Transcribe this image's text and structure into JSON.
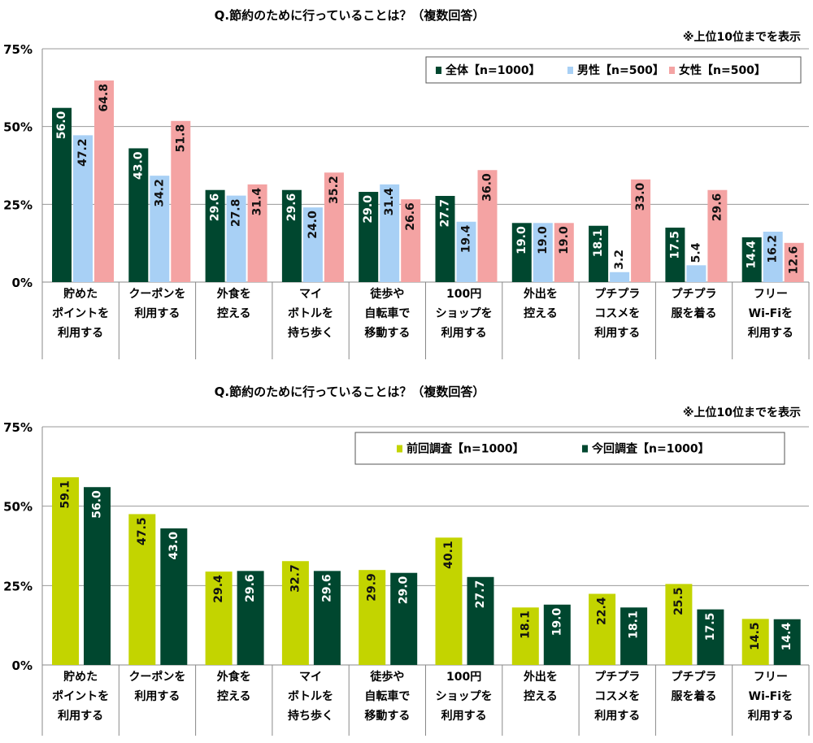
{
  "colors": {
    "total": "#00472f",
    "male": "#a8d0f5",
    "female": "#f4a3a3",
    "previous": "#c3d400",
    "current": "#00472f"
  },
  "chart_data": [
    {
      "type": "bar",
      "title": "Q.節約のために行っていることは？（複数回答）",
      "note": "※上位10位までを表示",
      "ylim": [
        0,
        75
      ],
      "yticks": [
        "0%",
        "25%",
        "50%",
        "75%"
      ],
      "grid": true,
      "legend": "top-right",
      "categories": [
        [
          "貯めた",
          "ポイントを",
          "利用する"
        ],
        [
          "クーポンを",
          "利用する"
        ],
        [
          "外食を",
          "控える"
        ],
        [
          "マイ",
          "ボトルを",
          "持ち歩く"
        ],
        [
          "徒歩や",
          "自転車で",
          "移動する"
        ],
        [
          "100円",
          "ショップを",
          "利用する"
        ],
        [
          "外出を",
          "控える"
        ],
        [
          "プチプラ",
          "コスメを",
          "利用する"
        ],
        [
          "プチプラ",
          "服を着る"
        ],
        [
          "フリー",
          "Wi-Fiを",
          "利用する"
        ]
      ],
      "series": [
        {
          "name": "全体【n=1000】",
          "color_key": "total",
          "values": [
            56.0,
            43.0,
            29.6,
            29.6,
            29.0,
            27.7,
            19.0,
            18.1,
            17.5,
            14.4
          ]
        },
        {
          "name": "男性【n=500】",
          "color_key": "male",
          "values": [
            47.2,
            34.2,
            27.8,
            24.0,
            31.4,
            19.4,
            19.0,
            3.2,
            5.4,
            16.2
          ]
        },
        {
          "name": "女性【n=500】",
          "color_key": "female",
          "values": [
            64.8,
            51.8,
            31.4,
            35.2,
            26.6,
            36.0,
            19.0,
            33.0,
            29.6,
            12.6
          ]
        }
      ]
    },
    {
      "type": "bar",
      "title": "Q.節約のために行っていることは？（複数回答）",
      "note": "※上位10位までを表示",
      "ylim": [
        0,
        75
      ],
      "yticks": [
        "0%",
        "25%",
        "50%",
        "75%"
      ],
      "grid": true,
      "legend": "top-right",
      "categories": [
        [
          "貯めた",
          "ポイントを",
          "利用する"
        ],
        [
          "クーポンを",
          "利用する"
        ],
        [
          "外食を",
          "控える"
        ],
        [
          "マイ",
          "ボトルを",
          "持ち歩く"
        ],
        [
          "徒歩や",
          "自転車で",
          "移動する"
        ],
        [
          "100円",
          "ショップを",
          "利用する"
        ],
        [
          "外出を",
          "控える"
        ],
        [
          "プチプラ",
          "コスメを",
          "利用する"
        ],
        [
          "プチプラ",
          "服を着る"
        ],
        [
          "フリー",
          "Wi-Fiを",
          "利用する"
        ]
      ],
      "series": [
        {
          "name": "前回調査【n=1000】",
          "color_key": "previous",
          "values": [
            59.1,
            47.5,
            29.4,
            32.7,
            29.9,
            40.1,
            18.1,
            22.4,
            25.5,
            14.5
          ]
        },
        {
          "name": "今回調査【n=1000】",
          "color_key": "current",
          "values": [
            56.0,
            43.0,
            29.6,
            29.6,
            29.0,
            27.7,
            19.0,
            18.1,
            17.5,
            14.4
          ]
        }
      ]
    }
  ]
}
